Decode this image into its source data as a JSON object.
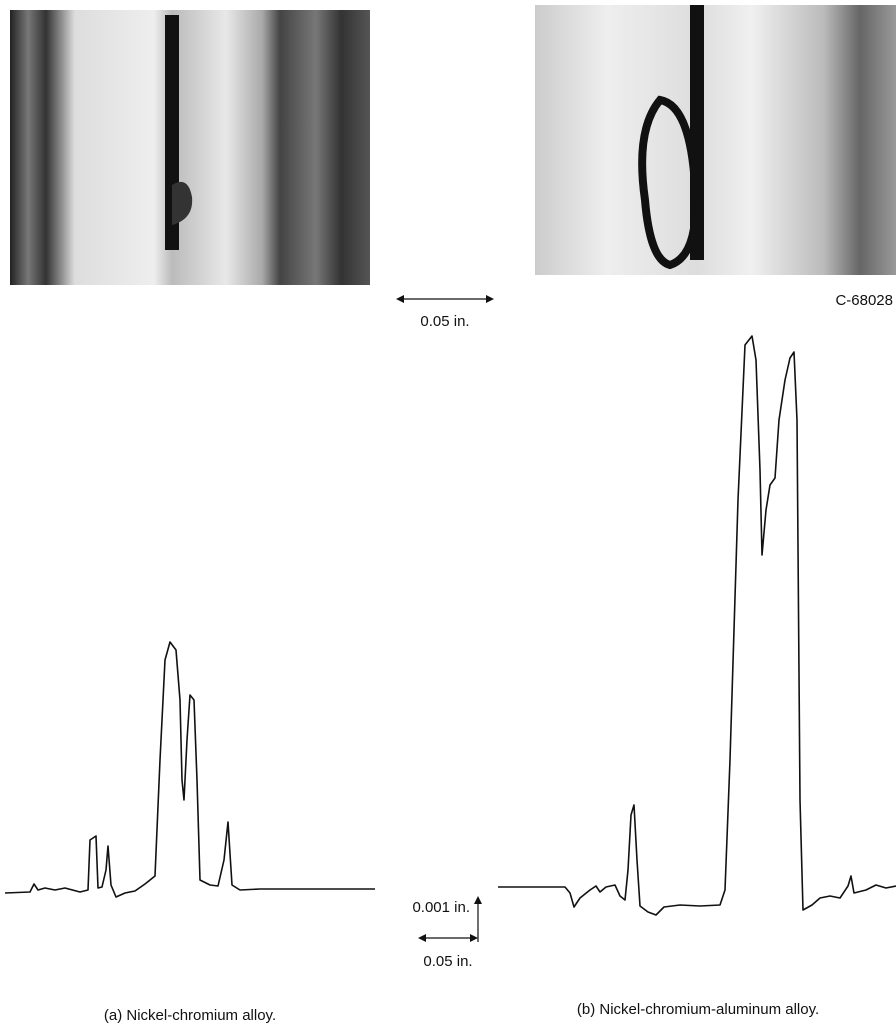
{
  "photo_scale": "0.05 in.",
  "photo_id": "C-68028",
  "profile_scale": {
    "vertical": "0.001 in.",
    "horizontal": "0.05 in."
  },
  "panels": [
    {
      "caption": "(a) Nickel-chromium alloy."
    },
    {
      "caption": "(b) Nickel-chromium-aluminum alloy."
    }
  ]
}
